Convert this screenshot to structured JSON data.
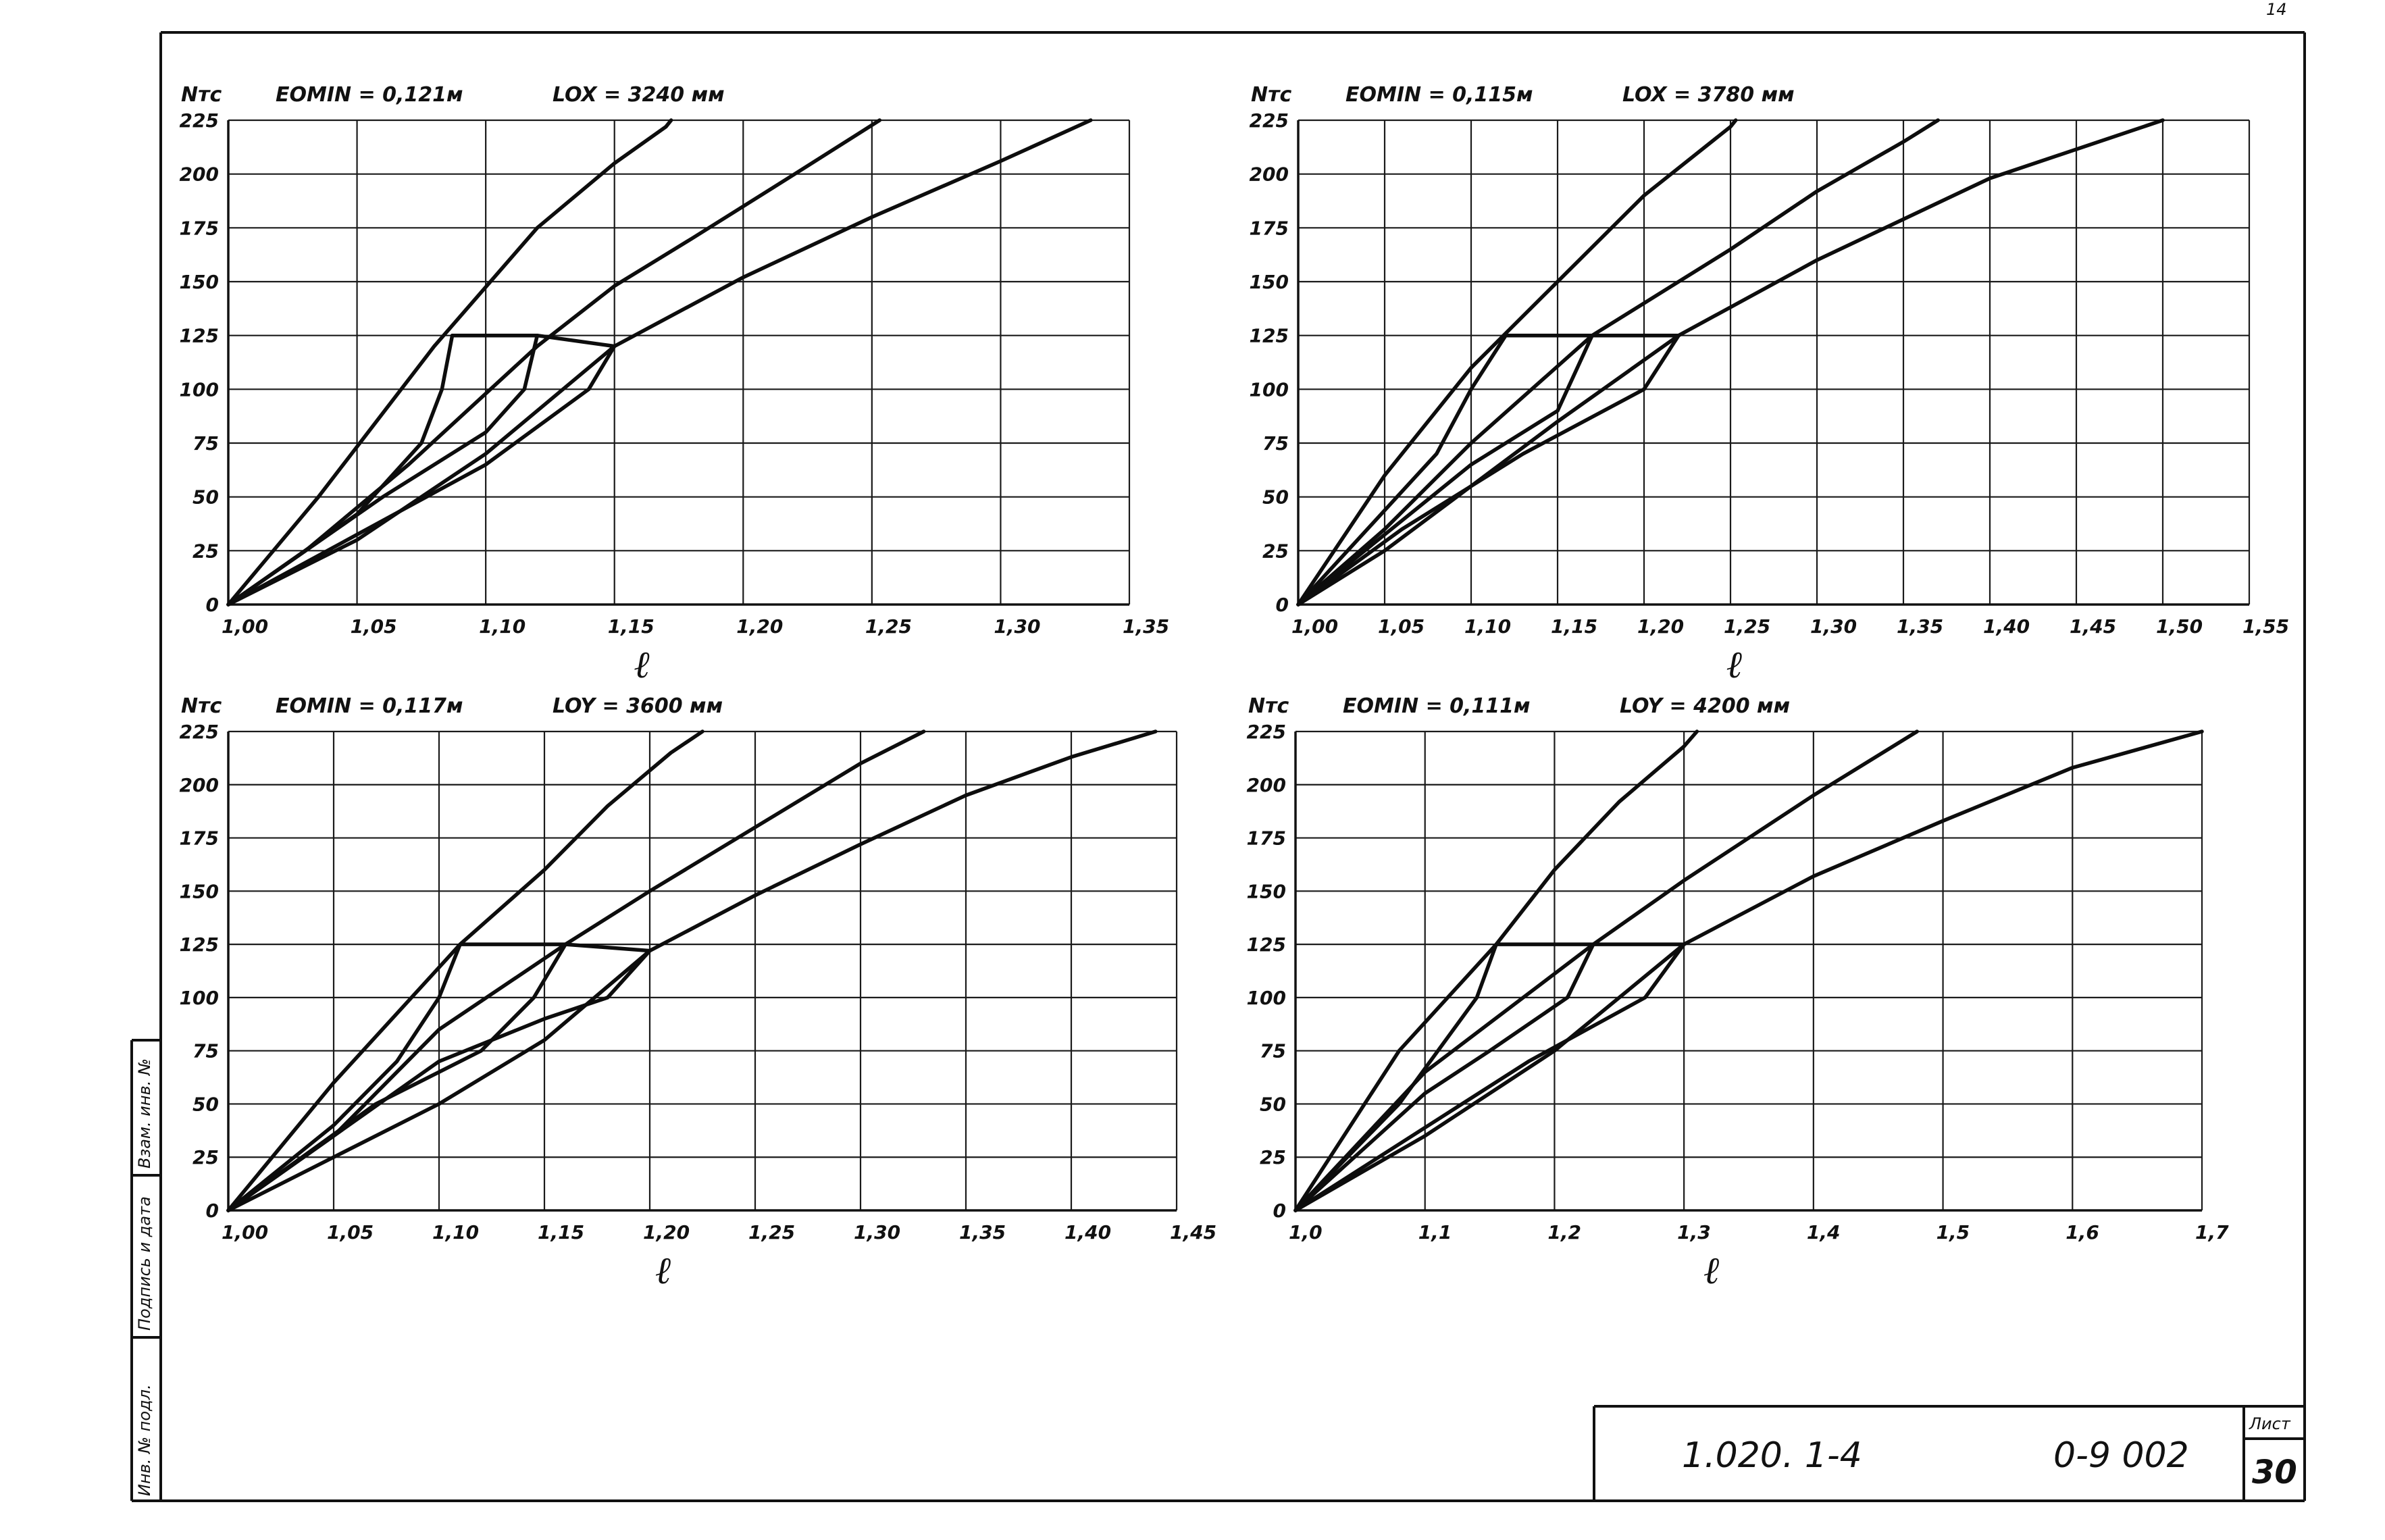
{
  "sheet": {
    "corner_mark": "14",
    "stamp": {
      "document_code": "1.020. 1-4",
      "series_code": "0-9 002",
      "sheet_label": "Лист",
      "sheet_number": "30"
    },
    "side_labels": [
      "Инв. № подл.",
      "Подпись и дата",
      "Взам. инв. №"
    ]
  },
  "chart_data": [
    {
      "type": "line",
      "ylabel": "Nтс",
      "xlabel": "ℓ",
      "params": {
        "eomin": "EOMIN = 0,121м",
        "length": "LOX = 3240 мм"
      },
      "xlim": [
        1.0,
        1.35
      ],
      "ylim": [
        0,
        225
      ],
      "x_ticks": [
        1.0,
        1.05,
        1.1,
        1.15,
        1.2,
        1.25,
        1.3,
        1.35
      ],
      "x_tick_labels": [
        "1,00",
        "1,05",
        "1,10",
        "1,15",
        "1,20",
        "1,25",
        "1,30",
        "1,35"
      ],
      "y_ticks": [
        0,
        25,
        50,
        75,
        100,
        125,
        150,
        175,
        200,
        225
      ],
      "y_tick_labels": [
        "0",
        "25",
        "50",
        "75",
        "100",
        "125",
        "150",
        "175",
        "200",
        "225"
      ],
      "series": [
        {
          "values": [
            [
              1.0,
              0
            ],
            [
              1.035,
              50
            ],
            [
              1.08,
              120
            ],
            [
              1.12,
              175
            ],
            [
              1.15,
              205
            ],
            [
              1.17,
              222
            ],
            [
              1.172,
              225
            ]
          ]
        },
        {
          "values": [
            [
              1.0,
              0
            ],
            [
              1.03,
              25
            ],
            [
              1.07,
              65
            ],
            [
              1.12,
              120
            ],
            [
              1.15,
              148
            ],
            [
              1.18,
              170
            ],
            [
              1.22,
              200
            ],
            [
              1.253,
              225
            ]
          ]
        },
        {
          "values": [
            [
              1.0,
              0
            ],
            [
              1.05,
              30
            ],
            [
              1.1,
              70
            ],
            [
              1.15,
              120
            ],
            [
              1.2,
              152
            ],
            [
              1.25,
              180
            ],
            [
              1.3,
              206
            ],
            [
              1.335,
              225
            ]
          ]
        },
        {
          "values": [
            [
              1.0,
              0
            ],
            [
              1.05,
              42
            ],
            [
              1.075,
              75
            ],
            [
              1.083,
              100
            ],
            [
              1.087,
              125
            ]
          ]
        },
        {
          "values": [
            [
              1.0,
              0
            ],
            [
              1.06,
              50
            ],
            [
              1.1,
              80
            ],
            [
              1.115,
              100
            ],
            [
              1.12,
              125
            ]
          ]
        },
        {
          "values": [
            [
              1.0,
              0
            ],
            [
              1.1,
              65
            ],
            [
              1.14,
              100
            ],
            [
              1.15,
              120
            ]
          ]
        },
        {
          "values": [
            [
              1.087,
              125
            ],
            [
              1.12,
              125
            ],
            [
              1.15,
              120
            ]
          ]
        }
      ]
    },
    {
      "type": "line",
      "ylabel": "Nтс",
      "xlabel": "ℓ",
      "params": {
        "eomin": "EOMIN = 0,115м",
        "length": "LOX = 3780 мм"
      },
      "xlim": [
        1.0,
        1.55
      ],
      "ylim": [
        0,
        225
      ],
      "x_ticks": [
        1.0,
        1.05,
        1.1,
        1.15,
        1.2,
        1.25,
        1.3,
        1.35,
        1.4,
        1.45,
        1.5,
        1.55
      ],
      "x_tick_labels": [
        "1,00",
        "1,05",
        "1,10",
        "1,15",
        "1,20",
        "1,25",
        "1,30",
        "1,35",
        "1,40",
        "1,45",
        "1,50",
        "1,55"
      ],
      "y_ticks": [
        0,
        25,
        50,
        75,
        100,
        125,
        150,
        175,
        200,
        225
      ],
      "y_tick_labels": [
        "0",
        "25",
        "50",
        "75",
        "100",
        "125",
        "150",
        "175",
        "200",
        "225"
      ],
      "series": [
        {
          "values": [
            [
              1.0,
              0
            ],
            [
              1.05,
              60
            ],
            [
              1.1,
              110
            ],
            [
              1.15,
              150
            ],
            [
              1.2,
              190
            ],
            [
              1.25,
              222
            ],
            [
              1.253,
              225
            ]
          ]
        },
        {
          "values": [
            [
              1.0,
              0
            ],
            [
              1.05,
              35
            ],
            [
              1.1,
              75
            ],
            [
              1.17,
              125
            ],
            [
              1.25,
              165
            ],
            [
              1.3,
              192
            ],
            [
              1.35,
              215
            ],
            [
              1.37,
              225
            ]
          ]
        },
        {
          "values": [
            [
              1.0,
              0
            ],
            [
              1.05,
              25
            ],
            [
              1.1,
              55
            ],
            [
              1.15,
              85
            ],
            [
              1.22,
              125
            ],
            [
              1.3,
              160
            ],
            [
              1.4,
              198
            ],
            [
              1.5,
              225
            ]
          ]
        },
        {
          "values": [
            [
              1.0,
              0
            ],
            [
              1.08,
              70
            ],
            [
              1.1,
              100
            ],
            [
              1.12,
              125
            ]
          ]
        },
        {
          "values": [
            [
              1.0,
              0
            ],
            [
              1.1,
              65
            ],
            [
              1.15,
              90
            ],
            [
              1.17,
              125
            ]
          ]
        },
        {
          "values": [
            [
              1.0,
              0
            ],
            [
              1.06,
              35
            ],
            [
              1.13,
              70
            ],
            [
              1.2,
              100
            ],
            [
              1.22,
              125
            ]
          ]
        },
        {
          "values": [
            [
              1.12,
              125
            ],
            [
              1.17,
              125
            ],
            [
              1.22,
              125
            ]
          ]
        }
      ]
    },
    {
      "type": "line",
      "ylabel": "Nтс",
      "xlabel": "ℓ",
      "params": {
        "eomin": "EOMIN = 0,117м",
        "length": "LOY = 3600 мм"
      },
      "xlim": [
        1.0,
        1.45
      ],
      "ylim": [
        0,
        225
      ],
      "x_ticks": [
        1.0,
        1.05,
        1.1,
        1.15,
        1.2,
        1.25,
        1.3,
        1.35,
        1.4,
        1.45
      ],
      "x_tick_labels": [
        "1,00",
        "1,05",
        "1,10",
        "1,15",
        "1,20",
        "1,25",
        "1,30",
        "1,35",
        "1,40",
        "1,45"
      ],
      "y_ticks": [
        0,
        25,
        50,
        75,
        100,
        125,
        150,
        175,
        200,
        225
      ],
      "y_tick_labels": [
        "0",
        "25",
        "50",
        "75",
        "100",
        "125",
        "150",
        "175",
        "200",
        "225"
      ],
      "series": [
        {
          "values": [
            [
              1.0,
              0
            ],
            [
              1.05,
              60
            ],
            [
              1.11,
              125
            ],
            [
              1.15,
              160
            ],
            [
              1.18,
              190
            ],
            [
              1.21,
              215
            ],
            [
              1.225,
              225
            ]
          ]
        },
        {
          "values": [
            [
              1.0,
              0
            ],
            [
              1.05,
              35
            ],
            [
              1.1,
              85
            ],
            [
              1.16,
              125
            ],
            [
              1.2,
              150
            ],
            [
              1.25,
              180
            ],
            [
              1.3,
              210
            ],
            [
              1.33,
              225
            ]
          ]
        },
        {
          "values": [
            [
              1.0,
              0
            ],
            [
              1.05,
              25
            ],
            [
              1.1,
              50
            ],
            [
              1.15,
              80
            ],
            [
              1.2,
              122
            ],
            [
              1.25,
              148
            ],
            [
              1.3,
              172
            ],
            [
              1.35,
              195
            ],
            [
              1.4,
              213
            ],
            [
              1.44,
              225
            ]
          ]
        },
        {
          "values": [
            [
              1.0,
              0
            ],
            [
              1.05,
              40
            ],
            [
              1.08,
              70
            ],
            [
              1.1,
              100
            ],
            [
              1.11,
              125
            ]
          ]
        },
        {
          "values": [
            [
              1.0,
              0
            ],
            [
              1.07,
              50
            ],
            [
              1.12,
              75
            ],
            [
              1.145,
              100
            ],
            [
              1.16,
              125
            ]
          ]
        },
        {
          "values": [
            [
              1.0,
              0
            ],
            [
              1.1,
              70
            ],
            [
              1.15,
              90
            ],
            [
              1.18,
              100
            ],
            [
              1.2,
              122
            ]
          ]
        },
        {
          "values": [
            [
              1.11,
              125
            ],
            [
              1.16,
              125
            ],
            [
              1.2,
              122
            ]
          ]
        }
      ]
    },
    {
      "type": "line",
      "ylabel": "Nтс",
      "xlabel": "ℓ",
      "params": {
        "eomin": "EOMIN = 0,111м",
        "length": "LOY = 4200 мм"
      },
      "xlim": [
        1.0,
        1.7
      ],
      "ylim": [
        0,
        225
      ],
      "x_ticks": [
        1.0,
        1.1,
        1.2,
        1.3,
        1.4,
        1.5,
        1.6,
        1.7
      ],
      "x_tick_labels": [
        "1,0",
        "1,1",
        "1,2",
        "1,3",
        "1,4",
        "1,5",
        "1,6",
        "1,7"
      ],
      "y_ticks": [
        0,
        25,
        50,
        75,
        100,
        125,
        150,
        175,
        200,
        225
      ],
      "y_tick_labels": [
        "0",
        "25",
        "50",
        "75",
        "100",
        "125",
        "150",
        "175",
        "200",
        "225"
      ],
      "series": [
        {
          "values": [
            [
              1.0,
              0
            ],
            [
              1.08,
              75
            ],
            [
              1.155,
              125
            ],
            [
              1.2,
              160
            ],
            [
              1.25,
              192
            ],
            [
              1.3,
              218
            ],
            [
              1.31,
              225
            ]
          ]
        },
        {
          "values": [
            [
              1.0,
              0
            ],
            [
              1.1,
              65
            ],
            [
              1.23,
              125
            ],
            [
              1.3,
              155
            ],
            [
              1.4,
              195
            ],
            [
              1.48,
              225
            ]
          ]
        },
        {
          "values": [
            [
              1.0,
              0
            ],
            [
              1.1,
              35
            ],
            [
              1.2,
              75
            ],
            [
              1.3,
              125
            ],
            [
              1.4,
              157
            ],
            [
              1.5,
              183
            ],
            [
              1.6,
              208
            ],
            [
              1.7,
              225
            ]
          ]
        },
        {
          "values": [
            [
              1.0,
              0
            ],
            [
              1.08,
              50
            ],
            [
              1.14,
              100
            ],
            [
              1.155,
              125
            ]
          ]
        },
        {
          "values": [
            [
              1.0,
              0
            ],
            [
              1.1,
              55
            ],
            [
              1.15,
              75
            ],
            [
              1.21,
              100
            ],
            [
              1.23,
              125
            ]
          ]
        },
        {
          "values": [
            [
              1.0,
              0
            ],
            [
              1.18,
              70
            ],
            [
              1.27,
              100
            ],
            [
              1.3,
              125
            ]
          ]
        },
        {
          "values": [
            [
              1.155,
              125
            ],
            [
              1.23,
              125
            ],
            [
              1.3,
              125
            ]
          ]
        }
      ]
    }
  ]
}
